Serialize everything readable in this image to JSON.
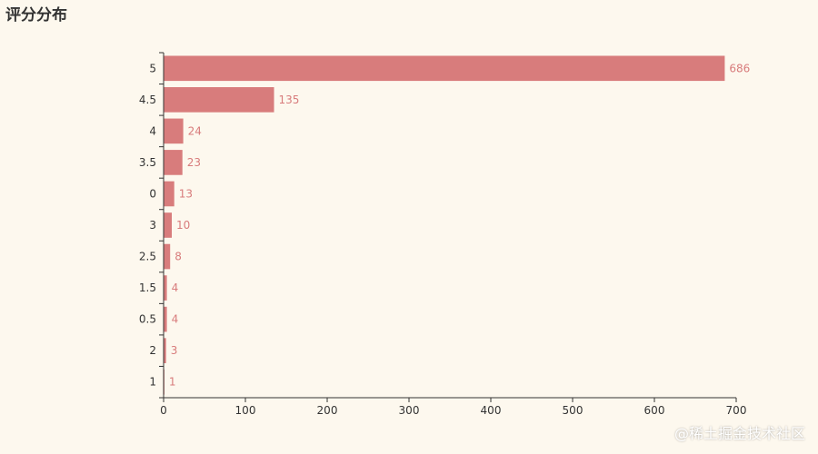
{
  "colors": {
    "background": "#fdf8ee",
    "bar": "#d87c7c",
    "axis": "#333333"
  },
  "watermark": "@稀土掘金技术社区",
  "chart_data": {
    "type": "bar",
    "orientation": "horizontal",
    "title": "评分分布",
    "xlabel": "",
    "ylabel": "",
    "categories": [
      "5",
      "4.5",
      "4",
      "3.5",
      "0",
      "3",
      "2.5",
      "1.5",
      "0.5",
      "2",
      "1"
    ],
    "values": [
      686,
      135,
      24,
      23,
      13,
      10,
      8,
      4,
      4,
      3,
      1
    ],
    "xlim": [
      0,
      700
    ],
    "xticks": [
      0,
      100,
      200,
      300,
      400,
      500,
      600,
      700
    ],
    "grid": false,
    "legend": "none",
    "data_labels": true
  }
}
